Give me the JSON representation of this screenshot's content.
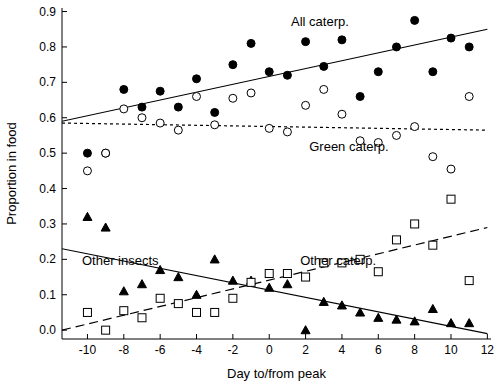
{
  "chart_data": {
    "type": "scatter",
    "x_label": "Day to/from peak",
    "y_label": "Proportion in food",
    "xlim": [
      -11.4,
      12.2
    ],
    "ylim": [
      -0.025,
      0.91
    ],
    "xticks": [
      -10,
      -8,
      -6,
      -4,
      -2,
      0,
      2,
      4,
      6,
      8,
      10,
      12
    ],
    "yticks": [
      {
        "value": 0,
        "label": "0.0"
      },
      0.1,
      0.2,
      0.3,
      0.4,
      0.5,
      0.6,
      0.7,
      0.8,
      0.9
    ],
    "grid": false,
    "series": [
      {
        "name": "All caterp.",
        "type": "scatter",
        "marker": "circle",
        "color": "#000000",
        "x": [
          -10,
          -9,
          -8,
          -7,
          -6,
          -5,
          -4,
          -3,
          -2,
          -1,
          0,
          1,
          2,
          3,
          4,
          5,
          6,
          7,
          8,
          9,
          10,
          11
        ],
        "values": [
          0.5,
          0.5,
          0.68,
          0.63,
          0.675,
          0.63,
          0.71,
          0.615,
          0.75,
          0.81,
          0.73,
          0.72,
          0.815,
          0.745,
          0.82,
          0.66,
          0.73,
          0.8,
          0.875,
          0.73,
          0.825,
          0.8
        ]
      },
      {
        "name": "Green caterp.",
        "type": "scatter",
        "marker": "circle-open",
        "color": "#000000",
        "x": [
          -10,
          -9,
          -8,
          -7,
          -6,
          -5,
          -4,
          -3,
          -2,
          -1,
          0,
          1,
          2,
          3,
          4,
          5,
          6,
          7,
          8,
          9,
          10,
          11
        ],
        "values": [
          0.45,
          0.5,
          0.625,
          0.6,
          0.585,
          0.565,
          0.66,
          0.58,
          0.655,
          0.67,
          0.57,
          0.56,
          0.635,
          0.68,
          0.61,
          0.535,
          0.53,
          0.55,
          0.575,
          0.49,
          0.455,
          0.66
        ]
      },
      {
        "name": "Other insects",
        "type": "scatter",
        "marker": "triangle",
        "color": "#000000",
        "x": [
          -10,
          -9,
          -8,
          -7,
          -6,
          -5,
          -4,
          -3,
          -2,
          -1,
          0,
          1,
          2,
          3,
          4,
          5,
          6,
          7,
          8,
          9,
          10,
          11
        ],
        "values": [
          0.32,
          0.29,
          0.11,
          0.13,
          0.17,
          0.15,
          0.1,
          0.2,
          0.14,
          0.14,
          0.12,
          0.13,
          0.0,
          0.08,
          0.07,
          0.05,
          0.035,
          0.03,
          0.025,
          0.06,
          0.02,
          0.02
        ]
      },
      {
        "name": "Other caterp.",
        "type": "scatter",
        "marker": "square-open",
        "color": "#000000",
        "x": [
          -10,
          -9,
          -8,
          -7,
          -6,
          -5,
          -4,
          -3,
          -2,
          -1,
          0,
          1,
          2,
          3,
          4,
          5,
          6,
          7,
          8,
          9,
          10,
          11
        ],
        "values": [
          0.05,
          0.0,
          0.055,
          0.035,
          0.09,
          0.075,
          0.05,
          0.05,
          0.09,
          0.135,
          0.16,
          0.16,
          0.15,
          0.19,
          0.19,
          0.2,
          0.165,
          0.255,
          0.3,
          0.24,
          0.37,
          0.14
        ]
      },
      {
        "type": "line",
        "line_style": "solid",
        "color": "#000000",
        "x": [
          -11.4,
          12
        ],
        "values": [
          0.59,
          0.85
        ]
      },
      {
        "type": "line",
        "line_style": "dotted",
        "color": "#000000",
        "x": [
          -11.4,
          12
        ],
        "values": [
          0.585,
          0.565
        ]
      },
      {
        "type": "line",
        "line_style": "solid",
        "color": "#000000",
        "x": [
          -11.4,
          12
        ],
        "values": [
          0.23,
          -0.01
        ]
      },
      {
        "type": "line",
        "line_style": "dashed",
        "color": "#000000",
        "x": [
          -11.4,
          12
        ],
        "values": [
          0.0,
          0.29
        ]
      }
    ]
  }
}
